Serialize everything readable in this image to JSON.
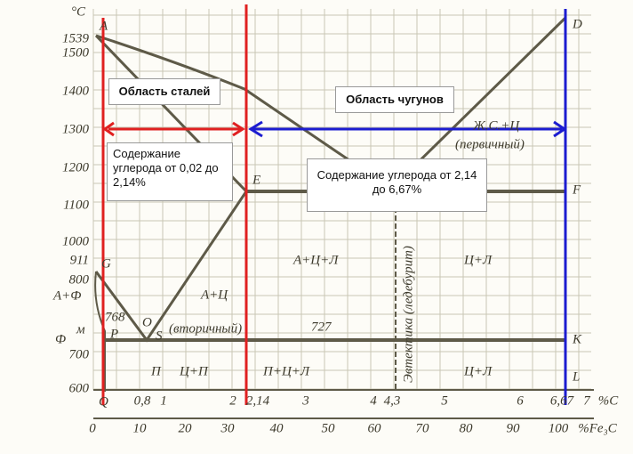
{
  "diagram": {
    "y_unit": "°C",
    "y_labels": [
      1539,
      1500,
      1400,
      1300,
      1200,
      1100,
      1000,
      911,
      800,
      700,
      600
    ],
    "side_labels": [
      "A+Ф",
      "768",
      "м",
      "Ф"
    ],
    "points": [
      "A",
      "D",
      "E",
      "F",
      "G",
      "P",
      "S",
      "O",
      "K",
      "L",
      "Q"
    ],
    "regions": [
      "А+Ц",
      "(вторичный)",
      "727",
      "А+Ц+Л",
      "Ц+Л",
      "Ж.С.+Ц",
      "(первичный)",
      "П",
      "Ц+П",
      "П+Ц+Л",
      "Ц+Л",
      "Эвтектика (ледебурит)"
    ],
    "x_labels_carbon": [
      "0,8",
      "1",
      "2",
      "2,14",
      "3",
      "4",
      "4,3",
      "5",
      "6",
      "6,67",
      "7"
    ],
    "x_unit_carbon": "%C",
    "x_labels_fe3c": [
      0,
      10,
      20,
      30,
      40,
      50,
      60,
      70,
      80,
      90,
      100
    ],
    "x_unit_fe3c": "%Fe₃C"
  },
  "annotations": {
    "steel_area": "Область сталей",
    "cast_iron_area": "Область чугунов",
    "steel_carbon": "Содержание углерода от 0,02 до 2,14%",
    "iron_carbon": "Содержание углерода от 2,14 до 6,67%"
  }
}
